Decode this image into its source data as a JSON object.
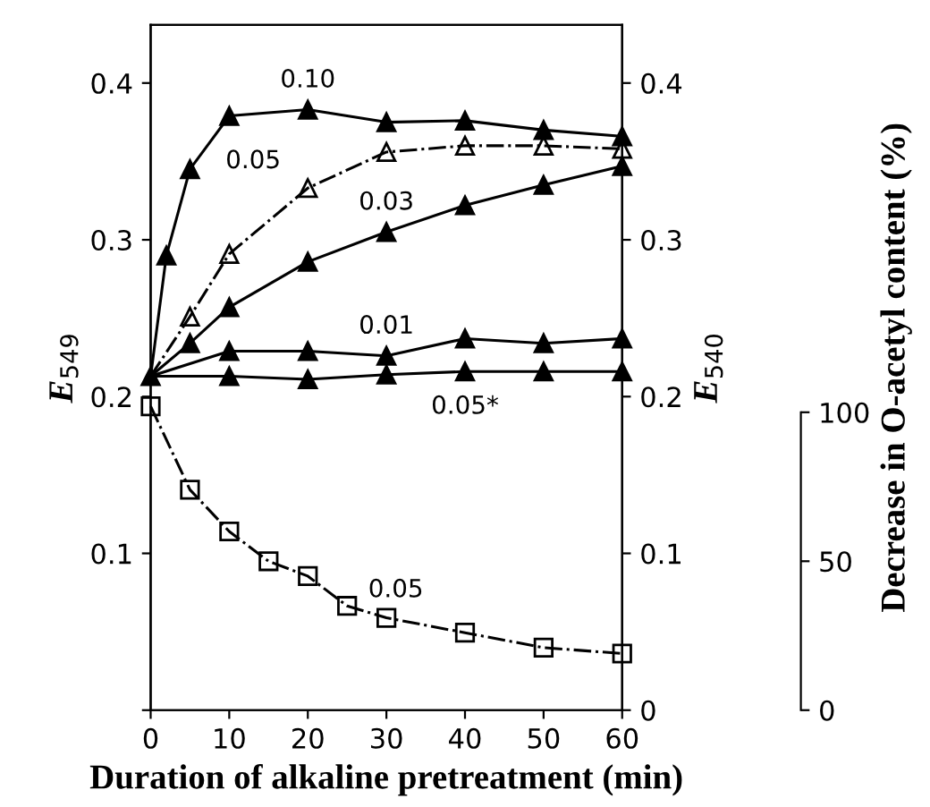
{
  "chart_data": {
    "type": "line",
    "xlabel": "Duration of alkaline pretreatment (min)",
    "ylabel": "E$_{549}$",
    "y2label": "E$_{540}$",
    "y3label": "Decrease in O-acetyl content (%)",
    "xlim": [
      0,
      60
    ],
    "xticks": [
      0,
      10,
      20,
      30,
      40,
      50,
      60
    ],
    "ylim": [
      0,
      0.437
    ],
    "yticks": [
      {
        "value": 0,
        "label": null
      },
      0.1,
      0.2,
      0.3,
      0.4
    ],
    "y2lim": [
      0,
      0.437
    ],
    "y2ticks": [
      0,
      0.1,
      0.2,
      0.3,
      0.4
    ],
    "y3lim": [
      0,
      230
    ],
    "y3ticks": [
      0,
      50,
      100
    ],
    "grid": false,
    "legend": false,
    "series": [
      {
        "color": "#000000",
        "marker": "triangle",
        "line_style": "solid",
        "x": [
          0,
          2,
          5,
          10,
          20,
          30,
          40,
          50,
          60
        ],
        "values": [
          0.213,
          0.29,
          0.345,
          0.379,
          0.383,
          0.375,
          0.376,
          0.37,
          0.366
        ]
      },
      {
        "color": "#000000",
        "marker": "triangle",
        "line_style": "dashdot",
        "x": [
          0,
          5,
          10,
          20,
          30,
          40,
          50,
          60
        ],
        "values": [
          0.213,
          0.251,
          0.291,
          0.333,
          0.356,
          0.36,
          0.36,
          0.358
        ]
      },
      {
        "color": "#000000",
        "marker": "triangle",
        "line_style": "solid",
        "x": [
          0,
          5,
          10,
          20,
          30,
          40,
          50,
          60
        ],
        "values": [
          0.213,
          0.234,
          0.257,
          0.286,
          0.305,
          0.322,
          0.335,
          0.347
        ]
      },
      {
        "color": "#000000",
        "marker": "triangle",
        "line_style": "solid",
        "x": [
          0,
          10,
          20,
          30,
          40,
          50,
          60
        ],
        "values": [
          0.213,
          0.229,
          0.229,
          0.226,
          0.237,
          0.234,
          0.237
        ]
      },
      {
        "color": "#000000",
        "marker": "triangle",
        "line_style": "solid",
        "x": [
          0,
          10,
          20,
          30,
          40,
          50,
          60
        ],
        "values": [
          0.213,
          0.213,
          0.211,
          0.214,
          0.216,
          0.216,
          0.216
        ]
      },
      {
        "color": "#000000",
        "marker": "square",
        "line_style": "dashdot",
        "axis": "y3",
        "x": [
          0,
          5,
          10,
          15,
          20,
          25,
          30,
          40,
          50,
          60
        ],
        "values": [
          102,
          74,
          60,
          50,
          45,
          35,
          31,
          26,
          21,
          19
        ]
      }
    ],
    "annotations": [
      {
        "text": "0.10",
        "x": 20,
        "y": 0.383
      },
      {
        "text": "0.05",
        "x": 20,
        "y": 0.333
      },
      {
        "text": "0.03",
        "x": 30,
        "y": 0.305
      },
      {
        "text": "0.01",
        "x": 30,
        "y": 0.226
      },
      {
        "text": "0.05*",
        "x": 40,
        "y": 0.216
      },
      "0.05"
    ]
  }
}
